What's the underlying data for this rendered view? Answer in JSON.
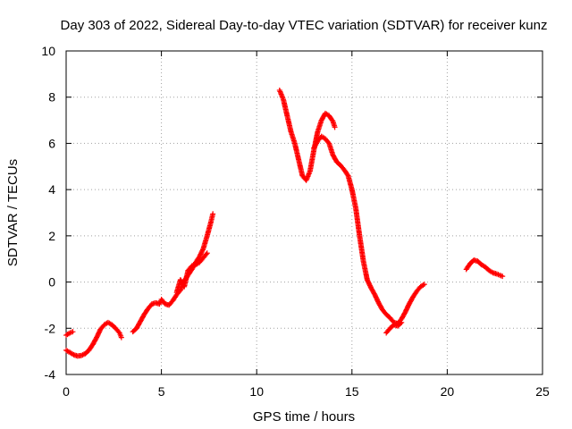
{
  "chart_data": {
    "type": "scatter",
    "title": "Day 303 of 2022, Sidereal Day-to-day VTEC variation (SDTVAR) for receiver kunz",
    "xlabel": "GPS time / hours",
    "ylabel": "SDTVAR / TECUs",
    "xlim": [
      0,
      25
    ],
    "ylim": [
      -4,
      10
    ],
    "xticks": [
      0,
      5,
      10,
      15,
      20,
      25
    ],
    "yticks": [
      -4,
      -2,
      0,
      2,
      4,
      6,
      8,
      10
    ],
    "grid": true,
    "marker": "+",
    "color": "#ff0000",
    "series": [
      {
        "x": [
          0.0,
          0.2,
          0.35
        ],
        "y": [
          -2.3,
          -2.2,
          -2.15
        ]
      },
      {
        "x": [
          0.0,
          0.2,
          0.4,
          0.6,
          0.8,
          1.0,
          1.2,
          1.4,
          1.6,
          1.8,
          2.0,
          2.2,
          2.4,
          2.6,
          2.8,
          2.9
        ],
        "y": [
          -2.95,
          -3.05,
          -3.15,
          -3.2,
          -3.18,
          -3.1,
          -2.95,
          -2.7,
          -2.4,
          -2.05,
          -1.85,
          -1.75,
          -1.85,
          -2.0,
          -2.2,
          -2.4
        ]
      },
      {
        "x": [
          3.5,
          3.7,
          3.9,
          4.1,
          4.3,
          4.5,
          4.7,
          4.9,
          5.0,
          5.2,
          5.4,
          5.6,
          5.8,
          6.0,
          6.2,
          6.4,
          6.6,
          6.8,
          7.0,
          7.2,
          7.4,
          7.6,
          7.7
        ],
        "y": [
          -2.15,
          -2.0,
          -1.7,
          -1.4,
          -1.15,
          -0.95,
          -0.9,
          -0.95,
          -0.75,
          -0.95,
          -1.0,
          -0.8,
          -0.55,
          -0.35,
          0.05,
          0.3,
          0.55,
          0.85,
          1.1,
          1.45,
          2.0,
          2.6,
          2.95
        ]
      },
      {
        "x": [
          5.8,
          6.0,
          6.2,
          6.4,
          6.6,
          6.8,
          7.0,
          7.2,
          7.4
        ],
        "y": [
          -0.45,
          0.1,
          -0.2,
          0.5,
          0.7,
          0.75,
          0.85,
          1.05,
          1.25
        ]
      },
      {
        "x": [
          11.2,
          11.4,
          11.6,
          11.8,
          12.0,
          12.2,
          12.4,
          12.6,
          12.8,
          13.0,
          13.2,
          13.4,
          13.6,
          13.8,
          14.0,
          14.1
        ],
        "y": [
          8.3,
          7.9,
          7.2,
          6.5,
          6.0,
          5.3,
          4.6,
          4.4,
          4.8,
          5.7,
          6.5,
          7.0,
          7.3,
          7.2,
          6.95,
          6.7
        ]
      },
      {
        "x": [
          13.0,
          13.2,
          13.4,
          13.6,
          13.8,
          14.0,
          14.2,
          14.4,
          14.6,
          14.8,
          15.0,
          15.2,
          15.4,
          15.6,
          15.8,
          16.0,
          16.2,
          16.4,
          16.6,
          16.8,
          17.0,
          17.2,
          17.4,
          17.6,
          17.8,
          18.0,
          18.2,
          18.4,
          18.6,
          18.8
        ],
        "y": [
          5.8,
          6.1,
          6.3,
          6.2,
          6.0,
          5.5,
          5.2,
          5.05,
          4.85,
          4.6,
          4.0,
          3.2,
          2.0,
          0.9,
          0.1,
          -0.25,
          -0.55,
          -0.9,
          -1.2,
          -1.4,
          -1.55,
          -1.75,
          -1.8,
          -1.6,
          -1.3,
          -0.95,
          -0.65,
          -0.4,
          -0.2,
          -0.1
        ]
      },
      {
        "x": [
          16.8,
          17.0,
          17.2,
          17.4,
          17.6
        ],
        "y": [
          -2.2,
          -2.0,
          -1.85,
          -1.9,
          -1.75
        ]
      },
      {
        "x": [
          21.0,
          21.2,
          21.4,
          21.6,
          21.8,
          22.0,
          22.2,
          22.4,
          22.6,
          22.9
        ],
        "y": [
          0.55,
          0.8,
          0.95,
          0.9,
          0.75,
          0.65,
          0.5,
          0.4,
          0.35,
          0.25
        ]
      }
    ]
  }
}
